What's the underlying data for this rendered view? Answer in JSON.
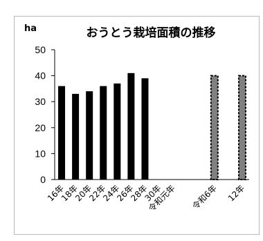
{
  "chart_data": {
    "type": "bar",
    "title": "おうとう栽培面積の推移",
    "ylabel": "ha",
    "xlabel": "",
    "ylim": [
      0,
      50
    ],
    "yticks": [
      0,
      10,
      20,
      30,
      40,
      50
    ],
    "grid": false,
    "legend": "none",
    "categories": [
      "16年",
      "18年",
      "20年",
      "22年",
      "24年",
      "26年",
      "28年",
      "30年",
      "令和元年",
      "",
      "",
      "令和6年",
      "",
      "12年"
    ],
    "series": [
      {
        "values": [
          36,
          33,
          34,
          36,
          37,
          41,
          39,
          null,
          null,
          null,
          null,
          40,
          null,
          40
        ],
        "color": "#000000",
        "target_indices": [
          11,
          13
        ],
        "target_style": {
          "fill": "#808080",
          "border": "#000000",
          "border_style": "dashed"
        }
      }
    ]
  }
}
